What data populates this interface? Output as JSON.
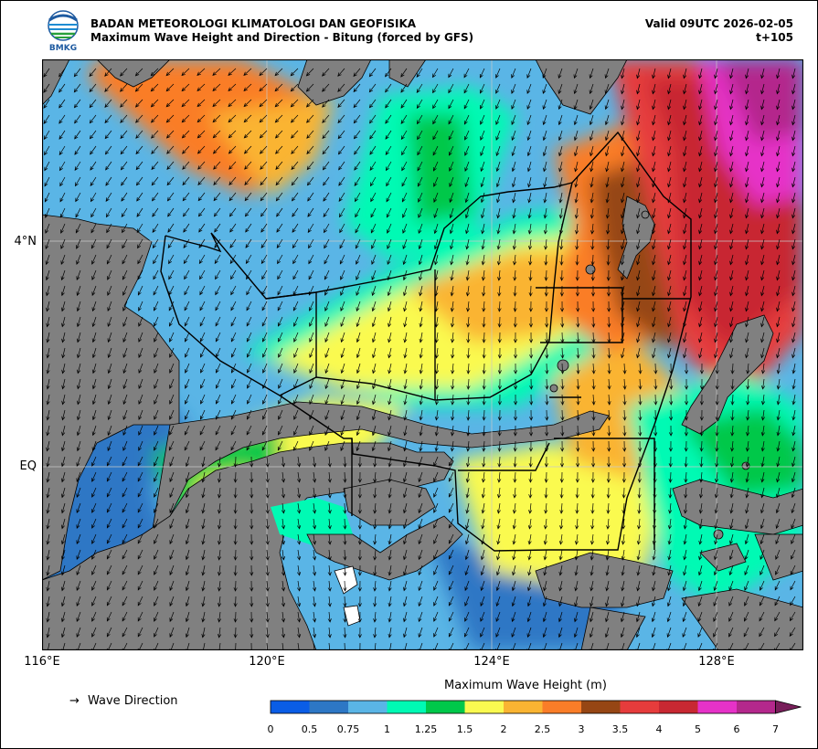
{
  "header": {
    "agency": "BADAN METEOROLOGI KLIMATOLOGI DAN GEOFISIKA",
    "subtitle": "Maximum Wave Height and Direction - Bitung (forced by GFS)",
    "valid": "Valid 09UTC 2026-02-05",
    "step": "t+105"
  },
  "logo": {
    "text": "BMKG"
  },
  "map": {
    "region": "Bitung",
    "lon_range": [
      116,
      129.6
    ],
    "lat_range": [
      -3.2,
      7.3
    ],
    "lon_labels": [
      {
        "value": 116,
        "text": "116°E"
      },
      {
        "value": 120,
        "text": "120°E"
      },
      {
        "value": 124,
        "text": "124°E"
      },
      {
        "value": 128,
        "text": "128°E"
      }
    ],
    "lat_labels": [
      {
        "value": 4,
        "text": "4°N"
      },
      {
        "value": 0,
        "text": "EQ"
      }
    ],
    "colors": {
      "land": "#808080",
      "coast": "#000000",
      "grid": "#c8c8c8",
      "zone_lines": "#000000",
      "arrows": "#000000"
    }
  },
  "legend": {
    "arrow_glyph": "→",
    "label": "Wave Direction"
  },
  "colorbar": {
    "title": "Maximum Wave Height (m)",
    "ticks": [
      "0",
      "0.5",
      "0.75",
      "1",
      "1.25",
      "1.5",
      "2",
      "2.5",
      "3",
      "3.5",
      "4",
      "5",
      "6",
      "7"
    ],
    "colors": [
      "#0a5de6",
      "#2d77c5",
      "#5ab5e6",
      "#00fab4",
      "#00c84a",
      "#fafa50",
      "#fab432",
      "#fa7d28",
      "#964614",
      "#e63c3c",
      "#c82832",
      "#e632c8",
      "#b4288c",
      "#781e5a"
    ]
  }
}
